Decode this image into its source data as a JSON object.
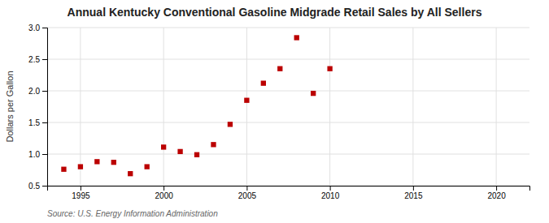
{
  "chart_data": {
    "type": "scatter",
    "title": "Annual Kentucky Conventional Gasoline Midgrade Retail Sales by All Sellers",
    "ylabel": "Dollars per Gallon",
    "annotations": [
      "Source: U.S. Energy Information Administration"
    ],
    "x": [
      1994,
      1995,
      1996,
      1997,
      1998,
      1999,
      2000,
      2001,
      2002,
      2003,
      2004,
      2005,
      2006,
      2007,
      2008,
      2009,
      2010
    ],
    "values": [
      0.76,
      0.8,
      0.88,
      0.87,
      0.69,
      0.8,
      1.11,
      1.04,
      0.99,
      1.15,
      1.47,
      1.85,
      2.12,
      2.35,
      2.84,
      1.96,
      2.35
    ],
    "color": "#bb0000",
    "marker": "square",
    "xlim": [
      1993,
      2022
    ],
    "ylim": [
      0.5,
      3.0
    ],
    "xticks": [
      1995,
      2000,
      2005,
      2010,
      2015,
      2020
    ],
    "yticks": [
      0.5,
      {
        "value": 1.0,
        "label": "1.0"
      },
      1.5,
      {
        "value": 2.0,
        "label": "2.0"
      },
      2.5,
      {
        "value": 3.0,
        "label": "3.0"
      }
    ],
    "grid": true
  }
}
